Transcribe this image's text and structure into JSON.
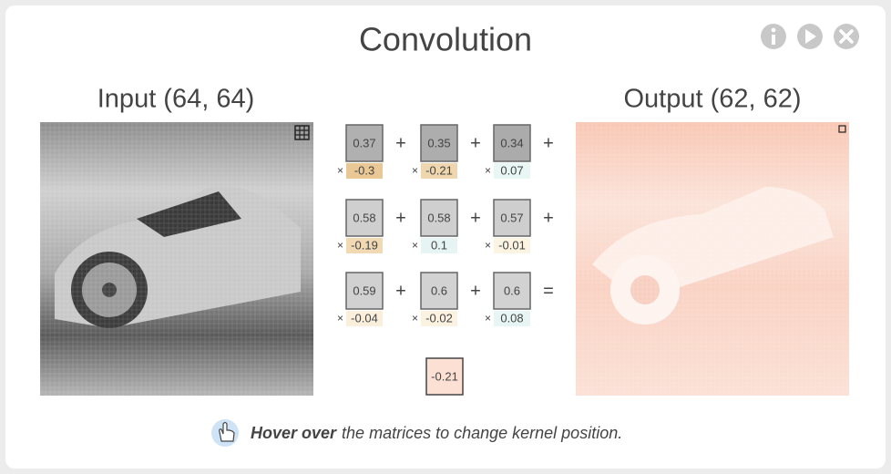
{
  "header": {
    "title": "Convolution"
  },
  "input": {
    "label": "Input (64, 64)"
  },
  "output": {
    "label": "Output (62, 62)"
  },
  "kernel": {
    "times": "×",
    "rows": [
      [
        {
          "input": 0.37,
          "weight": -0.3
        },
        {
          "input": 0.35,
          "weight": -0.21
        },
        {
          "input": 0.34,
          "weight": 0.07
        }
      ],
      [
        {
          "input": 0.58,
          "weight": -0.19
        },
        {
          "input": 0.58,
          "weight": 0.1
        },
        {
          "input": 0.57,
          "weight": -0.01
        }
      ],
      [
        {
          "input": 0.59,
          "weight": -0.04
        },
        {
          "input": 0.6,
          "weight": -0.02
        },
        {
          "input": 0.6,
          "weight": 0.08
        }
      ]
    ],
    "operators": [
      [
        "+",
        "+",
        "+"
      ],
      [
        "+",
        "+",
        "+"
      ],
      [
        "+",
        "+",
        "="
      ]
    ],
    "result": -0.21
  },
  "footer": {
    "emphasis": "Hover over",
    "text": "the matrices to change kernel position."
  }
}
